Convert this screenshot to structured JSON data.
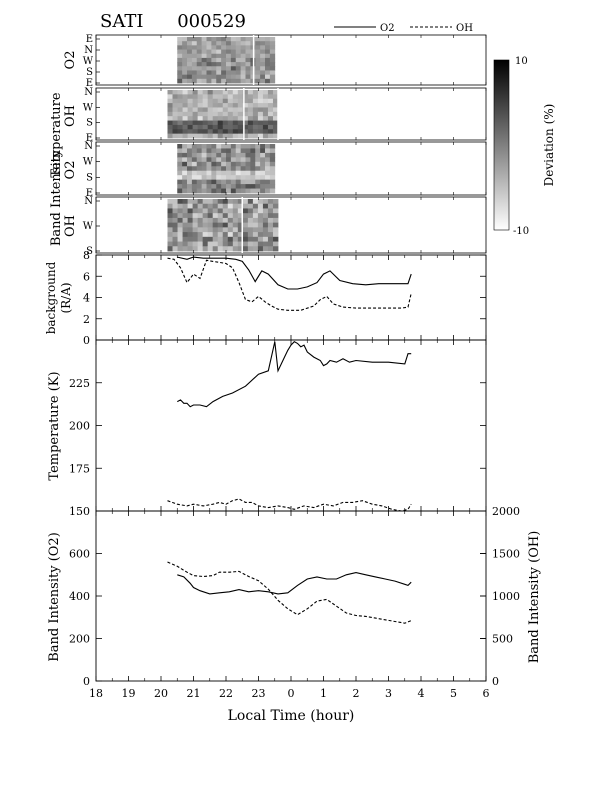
{
  "page": {
    "title": "SATI",
    "date_code": "000529"
  },
  "legend": {
    "o2_label": "O2",
    "oh_label": "OH"
  },
  "colorbar": {
    "label": "Deviation  (%)",
    "max_label": "10",
    "min_label": "-10",
    "range": [
      -10,
      10
    ]
  },
  "keograms": [
    {
      "label_line1": "Temperature",
      "label_line2": "O2",
      "direction_ticks": [
        "E",
        "N",
        "W",
        "S",
        "E"
      ],
      "t_start": 20.5,
      "t_end": 23.5,
      "gaps": [
        22.85
      ]
    },
    {
      "label_line1": "Temperature",
      "label_line2": "OH",
      "direction_ticks": [
        "N",
        "W",
        "S",
        "E"
      ],
      "t_start": 20.2,
      "t_end": 23.6,
      "gaps": [
        22.55,
        23.6
      ]
    },
    {
      "label_line1": "Band  Intensity",
      "label_line2": "O2",
      "direction_ticks": [
        "N",
        "W",
        "S",
        "E"
      ],
      "t_start": 20.5,
      "t_end": 23.5,
      "gaps": []
    },
    {
      "label_line1": "Band  Intensity",
      "label_line2": "OH",
      "direction_ticks": [
        "N",
        "W",
        "S"
      ],
      "t_start": 20.2,
      "t_end": 23.6,
      "gaps": [
        22.5
      ]
    }
  ],
  "chart_data": [
    {
      "type": "line",
      "panel": "background",
      "ylabel_line1": "background",
      "ylabel_line2": "(R/A)",
      "ylim": [
        0,
        8
      ],
      "yticks": [
        "0",
        "2",
        "4",
        "6",
        "8"
      ],
      "series": [
        {
          "name": "O2",
          "style": "solid",
          "x": [
            20.5,
            20.8,
            21.0,
            21.3,
            21.6,
            22.0,
            22.3,
            22.5,
            22.7,
            22.9,
            23.1,
            23.3,
            23.6,
            23.9,
            0.2,
            0.5,
            0.8,
            1.0,
            1.2,
            1.5,
            1.9,
            2.3,
            2.7,
            3.0,
            3.3,
            3.6,
            3.7
          ],
          "y": [
            7.8,
            7.6,
            7.8,
            7.7,
            7.7,
            7.7,
            7.6,
            7.4,
            6.6,
            5.5,
            6.5,
            6.2,
            5.2,
            4.8,
            4.8,
            5.0,
            5.4,
            6.2,
            6.5,
            5.6,
            5.3,
            5.2,
            5.3,
            5.3,
            5.3,
            5.3,
            6.2
          ]
        },
        {
          "name": "OH",
          "style": "dashed",
          "x": [
            20.2,
            20.4,
            20.6,
            20.8,
            21.0,
            21.2,
            21.4,
            21.6,
            21.8,
            22.0,
            22.2,
            22.4,
            22.6,
            22.8,
            23.0,
            23.2,
            23.4,
            23.6,
            23.9,
            0.3,
            0.7,
            0.9,
            1.1,
            1.3,
            1.6,
            2.0,
            2.5,
            3.0,
            3.4,
            3.6,
            3.7
          ],
          "y": [
            7.7,
            7.6,
            6.8,
            5.4,
            6.2,
            5.8,
            7.5,
            7.4,
            7.3,
            7.2,
            6.8,
            5.4,
            3.8,
            3.6,
            4.1,
            3.6,
            3.2,
            2.9,
            2.8,
            2.8,
            3.2,
            3.8,
            4.1,
            3.4,
            3.1,
            3.0,
            3.0,
            3.0,
            3.0,
            3.1,
            4.4
          ]
        }
      ]
    },
    {
      "type": "line",
      "panel": "temperature",
      "ylabel": "Temperature  (K)",
      "ylim": [
        150,
        250
      ],
      "yticks": [
        "150",
        "175",
        "200",
        "225"
      ],
      "series": [
        {
          "name": "O2",
          "style": "solid",
          "x": [
            20.5,
            20.6,
            20.7,
            20.8,
            20.9,
            21.0,
            21.2,
            21.4,
            21.6,
            21.9,
            22.2,
            22.6,
            23.0,
            23.3,
            23.5,
            23.6,
            23.7,
            23.8,
            23.9,
            0.0,
            0.1,
            0.2,
            0.3,
            0.4,
            0.5,
            0.7,
            0.9,
            1.0,
            1.1,
            1.2,
            1.4,
            1.6,
            1.8,
            2.0,
            2.5,
            3.0,
            3.5,
            3.6,
            3.7
          ],
          "y": [
            214,
            215,
            213,
            213,
            211,
            212,
            212,
            211,
            214,
            217,
            219,
            223,
            230,
            232,
            249,
            232,
            236,
            240,
            244,
            247,
            249,
            248,
            246,
            247,
            243,
            240,
            238,
            235,
            236,
            238,
            237,
            239,
            237,
            238,
            237,
            237,
            236,
            242,
            242
          ]
        },
        {
          "name": "OH",
          "style": "dashed",
          "x": [
            20.2,
            20.5,
            20.8,
            21.0,
            21.3,
            21.6,
            21.8,
            22.0,
            22.2,
            22.4,
            22.6,
            22.8,
            23.0,
            23.3,
            23.6,
            23.9,
            0.1,
            0.4,
            0.7,
            1.0,
            1.3,
            1.6,
            1.9,
            2.2,
            2.5,
            2.8,
            3.1,
            3.4,
            3.6,
            3.7
          ],
          "y": [
            156,
            154,
            153,
            154,
            153,
            154,
            155,
            154,
            156,
            157,
            155,
            155,
            153,
            152,
            153,
            152,
            151,
            153,
            152,
            154,
            153,
            155,
            155,
            156,
            154,
            153,
            151,
            150,
            151,
            154
          ]
        }
      ]
    },
    {
      "type": "line",
      "panel": "band_intensity",
      "ylabel_left": "Band  Intensity  (O2)",
      "ylabel_right": "Band  Intensity  (OH)",
      "ylim_left": [
        0,
        800
      ],
      "ylim_right": [
        0,
        2000
      ],
      "yticks_left": [
        "0",
        "200",
        "400",
        "600"
      ],
      "yticks_right": [
        "0",
        "500",
        "1000",
        "1500",
        "2000"
      ],
      "xlabel": "Local  Time  (hour)",
      "xticks": [
        "18",
        "19",
        "20",
        "21",
        "22",
        "23",
        "0",
        "1",
        "2",
        "3",
        "4",
        "5",
        "6"
      ],
      "series": [
        {
          "name": "O2",
          "axis": "left",
          "style": "solid",
          "x": [
            20.5,
            20.7,
            20.9,
            21.0,
            21.2,
            21.5,
            21.8,
            22.1,
            22.4,
            22.7,
            23.0,
            23.3,
            23.6,
            23.9,
            0.2,
            0.5,
            0.8,
            1.1,
            1.4,
            1.7,
            2.0,
            2.3,
            2.6,
            2.9,
            3.2,
            3.5,
            3.6,
            3.7
          ],
          "y": [
            500,
            490,
            460,
            440,
            425,
            410,
            415,
            420,
            430,
            420,
            425,
            420,
            410,
            415,
            450,
            480,
            490,
            480,
            480,
            500,
            510,
            500,
            490,
            480,
            470,
            455,
            450,
            465
          ]
        },
        {
          "name": "OH",
          "axis": "right",
          "style": "dashed",
          "x": [
            20.2,
            20.5,
            20.8,
            21.0,
            21.3,
            21.6,
            21.8,
            22.1,
            22.4,
            22.7,
            23.0,
            23.3,
            23.6,
            23.9,
            0.2,
            0.5,
            0.8,
            1.1,
            1.4,
            1.7,
            2.0,
            2.3,
            2.6,
            2.9,
            3.2,
            3.5,
            3.7
          ],
          "y": [
            1400,
            1350,
            1280,
            1240,
            1230,
            1240,
            1280,
            1280,
            1290,
            1230,
            1180,
            1080,
            950,
            850,
            780,
            850,
            940,
            960,
            880,
            800,
            770,
            760,
            740,
            720,
            700,
            680,
            710
          ]
        }
      ]
    }
  ]
}
